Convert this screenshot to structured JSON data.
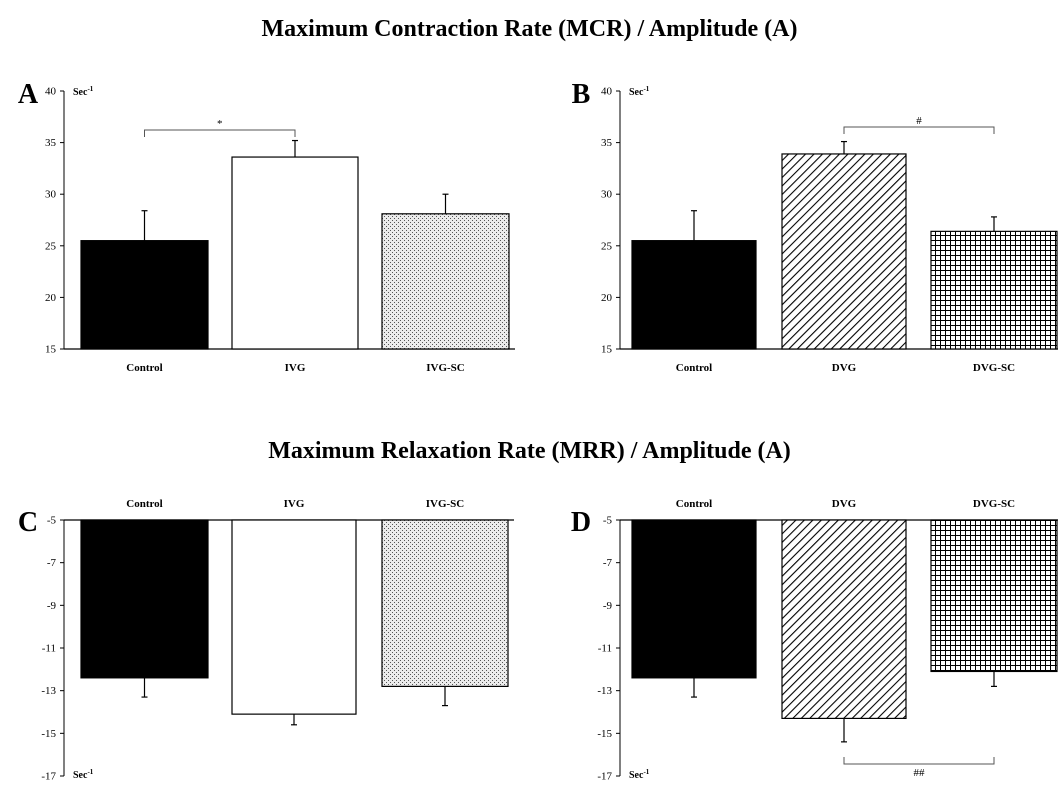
{
  "section_titles": {
    "top": "Maximum Contraction Rate (MCR) / Amplitude (A)",
    "bottom": "Maximum Relaxation Rate (MRR) / Amplitude (A)"
  },
  "chart_data": [
    {
      "panel": "A",
      "type": "bar",
      "unit_label": "Sec-1",
      "categories": [
        "Control",
        "IVG",
        "IVG-SC"
      ],
      "values": [
        25.5,
        33.6,
        28.1
      ],
      "errors": [
        2.9,
        1.6,
        1.9
      ],
      "fills": [
        "solid-black",
        "white",
        "stipple"
      ],
      "ylim": [
        15,
        40
      ],
      "yticks": [
        15,
        20,
        25,
        30,
        35,
        40
      ],
      "significance": [
        {
          "from": 0,
          "to": 1,
          "symbol": "*"
        }
      ]
    },
    {
      "panel": "B",
      "type": "bar",
      "unit_label": "Sec-1",
      "categories": [
        "Control",
        "DVG",
        "DVG-SC"
      ],
      "values": [
        25.5,
        33.9,
        26.4
      ],
      "errors": [
        2.9,
        1.2,
        1.4
      ],
      "fills": [
        "solid-black",
        "diagonal-hatch",
        "grid-hatch"
      ],
      "ylim": [
        15,
        40
      ],
      "yticks": [
        15,
        20,
        25,
        30,
        35,
        40
      ],
      "significance": [
        {
          "from": 1,
          "to": 2,
          "symbol": "#"
        }
      ]
    },
    {
      "panel": "C",
      "type": "bar",
      "unit_label": "Sec-1",
      "categories": [
        "Control",
        "IVG",
        "IVG-SC"
      ],
      "values": [
        -12.4,
        -14.1,
        -12.8
      ],
      "errors": [
        0.9,
        0.5,
        0.9
      ],
      "fills": [
        "solid-black",
        "white",
        "stipple"
      ],
      "ylim": [
        -17,
        -5
      ],
      "yticks": [
        -5,
        -7,
        -9,
        -11,
        -13,
        -15,
        -17
      ],
      "significance": []
    },
    {
      "panel": "D",
      "type": "bar",
      "unit_label": "Sec-1",
      "categories": [
        "Control",
        "DVG",
        "DVG-SC"
      ],
      "values": [
        -12.4,
        -14.3,
        -12.1
      ],
      "errors": [
        0.9,
        1.1,
        0.7
      ],
      "fills": [
        "solid-black",
        "diagonal-hatch",
        "grid-hatch"
      ],
      "ylim": [
        -17,
        -5
      ],
      "yticks": [
        -5,
        -7,
        -9,
        -11,
        -13,
        -15,
        -17
      ],
      "significance": [
        {
          "from": 1,
          "to": 2,
          "symbol": "##"
        }
      ]
    }
  ]
}
